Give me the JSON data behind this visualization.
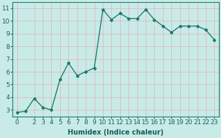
{
  "x": [
    0,
    1,
    2,
    3,
    4,
    5,
    6,
    7,
    8,
    9,
    10,
    11,
    12,
    13,
    14,
    15,
    16,
    17,
    18,
    19,
    20,
    21,
    22,
    23
  ],
  "y": [
    2.8,
    2.9,
    3.9,
    3.2,
    3.0,
    5.4,
    6.7,
    5.7,
    6.0,
    6.3,
    10.9,
    10.1,
    10.6,
    10.2,
    10.2,
    10.9,
    10.1,
    9.6,
    9.1,
    9.6,
    9.6,
    9.6,
    9.3,
    8.5
  ],
  "line_color": "#1a7a6e",
  "marker": "D",
  "marker_size": 2.0,
  "bg_color": "#c8ebe8",
  "grid_color": "#e0b8b8",
  "xlabel": "Humidex (Indice chaleur)",
  "xlim": [
    -0.5,
    23.5
  ],
  "ylim": [
    2.5,
    11.5
  ],
  "yticks": [
    3,
    4,
    5,
    6,
    7,
    8,
    9,
    10,
    11
  ],
  "xticks": [
    0,
    2,
    3,
    4,
    5,
    6,
    7,
    8,
    9,
    10,
    11,
    12,
    13,
    14,
    15,
    16,
    17,
    18,
    19,
    20,
    21,
    22,
    23
  ],
  "xtick_labels": [
    "0",
    "2",
    "3",
    "4",
    "5",
    "6",
    "7",
    "8",
    "9",
    "10",
    "11",
    "12",
    "13",
    "14",
    "15",
    "16",
    "17",
    "18",
    "19",
    "20",
    "21",
    "22",
    "23"
  ],
  "xlabel_fontsize": 7,
  "tick_fontsize": 6.5,
  "line_width": 1.0
}
